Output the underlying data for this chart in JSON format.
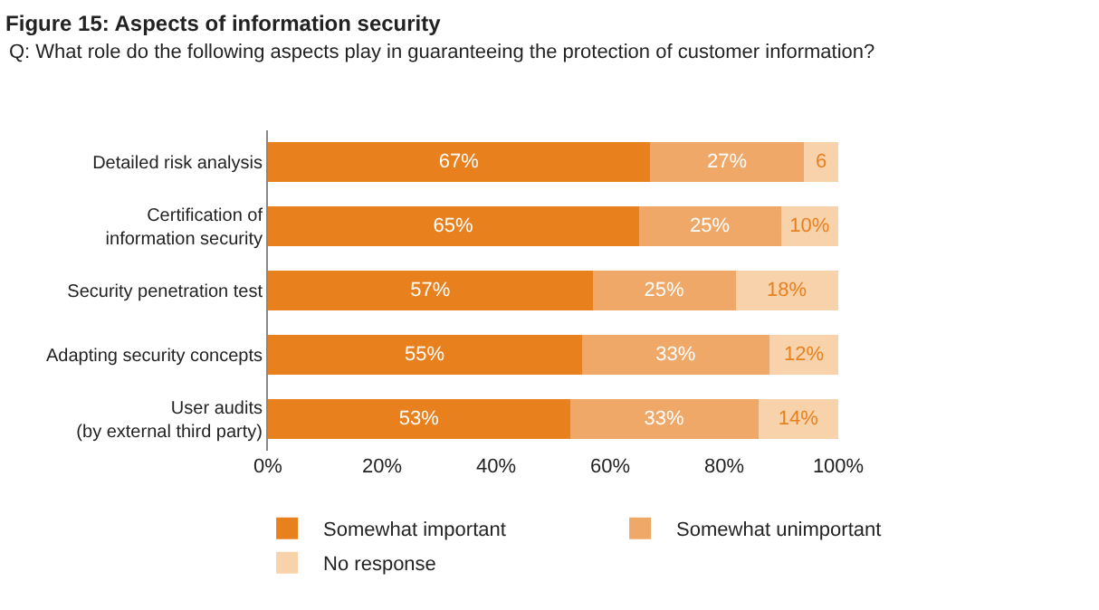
{
  "chart_data": {
    "type": "bar",
    "orientation": "horizontal",
    "stacked": true,
    "title": "Figure 15: Aspects of information security",
    "subtitle": "Q: What role do the following aspects play in guaranteeing the protection of customer information?",
    "categories": [
      "Detailed risk analysis",
      "Certification of\ninformation security",
      "Security penetration test",
      "Adapting security concepts",
      "User audits\n(by external third party)"
    ],
    "series": [
      {
        "name": "Somewhat important",
        "color": "#e8801e",
        "values": [
          67,
          65,
          57,
          55,
          53
        ],
        "value_labels": [
          "67%",
          "65%",
          "57%",
          "55%",
          "53%"
        ]
      },
      {
        "name": "Somewhat unimportant",
        "color": "#f0a868",
        "values": [
          27,
          25,
          25,
          33,
          33
        ],
        "value_labels": [
          "27%",
          "25%",
          "25%",
          "33%",
          "33%"
        ]
      },
      {
        "name": "No response",
        "color": "#f8d2aa",
        "values": [
          6,
          10,
          18,
          12,
          14
        ],
        "value_labels": [
          "6",
          "10%",
          "18%",
          "12%",
          "14%"
        ]
      }
    ],
    "xlim": [
      0,
      100
    ],
    "xticks": [
      {
        "value": 0,
        "label": "0%"
      },
      {
        "value": 20,
        "label": "20%"
      },
      {
        "value": 40,
        "label": "40%"
      },
      {
        "value": 60,
        "label": "60%"
      },
      {
        "value": 80,
        "label": "80%"
      },
      {
        "value": 100,
        "label": "100%"
      }
    ],
    "legend": "bottom"
  }
}
